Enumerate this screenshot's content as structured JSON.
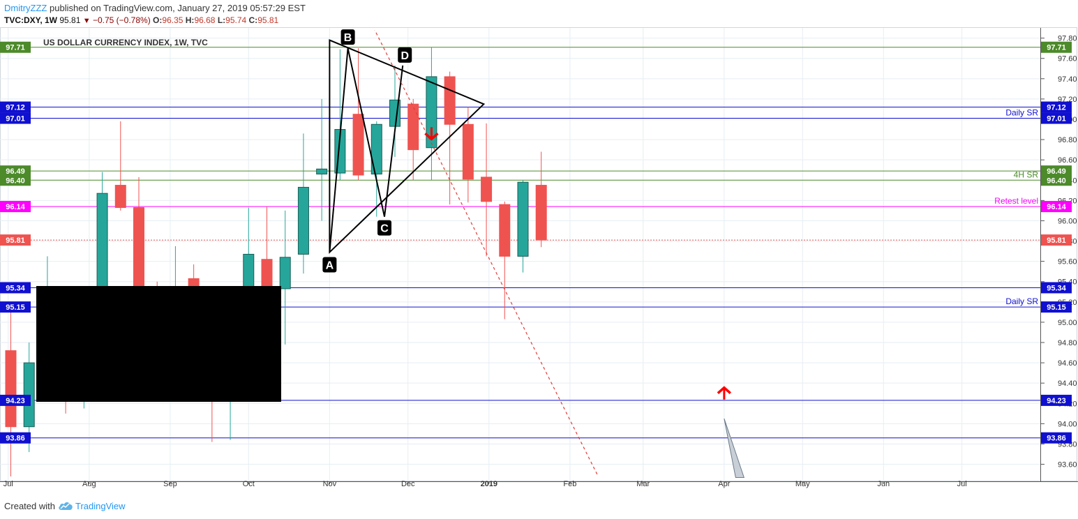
{
  "header": {
    "author": "DmitryZZZ",
    "published": "published on TradingView.com, January 27, 2019 05:57:29 EST",
    "symbol": "TVC:DXY, 1W",
    "last": "95.81",
    "change": "−0.75 (−0.78%)",
    "o_label": "O:",
    "o_value": "96.35",
    "h_label": "H:",
    "h_value": "96.68",
    "l_label": "L:",
    "l_value": "95.74",
    "c_label": "C:",
    "c_value": "95.81"
  },
  "footer": {
    "created_with": "Created with",
    "brand": "TradingView"
  },
  "colors": {
    "up": "#26a69a",
    "down": "#ef5350",
    "green_level": "#4c8a2a",
    "blue_level": "#1010d0",
    "magenta_level": "#ff00ff",
    "last_price": "#ef5350",
    "grid": "#e6eef3",
    "pattern": "#000000",
    "trendline": "#e53935",
    "arrow": "#ff0000"
  },
  "chart_data": {
    "type": "candlestick",
    "title": "US DOLLAR CURRENCY INDEX, 1W, TVC",
    "ylim": [
      93.48,
      97.88
    ],
    "y_ticks": [
      93.6,
      93.8,
      94.0,
      94.2,
      94.4,
      94.6,
      94.8,
      95.0,
      95.2,
      95.4,
      95.6,
      95.8,
      96.0,
      96.2,
      96.4,
      96.6,
      96.8,
      97.0,
      97.2,
      97.4,
      97.6,
      97.8
    ],
    "y_tick_labels": [
      "93.60",
      "93.80",
      "94.00",
      "94.20",
      "94.40",
      "94.60",
      "94.80",
      "95.00",
      "95.20",
      "95.40",
      "95.60",
      "95.80",
      "96.00",
      "96.20",
      "96.40",
      "96.60",
      "96.80",
      "97.00",
      "97.20",
      "97.40",
      "97.60",
      "97.80"
    ],
    "x_range": [
      "2018-06-30",
      "2019-07-31"
    ],
    "x_ticks": [
      {
        "label": "Jul",
        "date": "2018-07-01"
      },
      {
        "label": "Aug",
        "date": "2018-08-01"
      },
      {
        "label": "Sep",
        "date": "2018-09-01"
      },
      {
        "label": "Oct",
        "date": "2018-10-01"
      },
      {
        "label": "Nov",
        "date": "2018-11-01"
      },
      {
        "label": "Dec",
        "date": "2018-12-01"
      },
      {
        "label": "2019",
        "date": "2019-01-01",
        "bold": true
      },
      {
        "label": "Feb",
        "date": "2019-02-01"
      },
      {
        "label": "Mar",
        "date": "2019-03-01"
      },
      {
        "label": "Apr",
        "date": "2019-04-01"
      },
      {
        "label": "May",
        "date": "2019-05-01"
      },
      {
        "label": "Jun",
        "date": "2019-06-01"
      },
      {
        "label": "Jul",
        "date": "2019-07-01"
      }
    ],
    "candles": [
      {
        "date": "2018-07-02",
        "o": 94.72,
        "h": 95.1,
        "l": 93.45,
        "c": 93.97
      },
      {
        "date": "2018-07-09",
        "o": 93.97,
        "h": 94.8,
        "l": 93.72,
        "c": 94.6
      },
      {
        "date": "2018-07-16",
        "o": 94.6,
        "h": 95.65,
        "l": 94.45,
        "c": 95.2
      },
      {
        "date": "2018-07-23",
        "o": 95.1,
        "h": 95.2,
        "l": 94.1,
        "c": 94.9
      },
      {
        "date": "2018-07-30",
        "o": 94.9,
        "h": 95.2,
        "l": 94.15,
        "c": 95.1
      },
      {
        "date": "2018-08-06",
        "o": 95.15,
        "h": 96.48,
        "l": 95.05,
        "c": 96.27
      },
      {
        "date": "2018-08-13",
        "o": 96.35,
        "h": 96.98,
        "l": 96.1,
        "c": 96.13
      },
      {
        "date": "2018-08-20",
        "o": 96.13,
        "h": 96.43,
        "l": 95.0,
        "c": 95.25
      },
      {
        "date": "2018-08-27",
        "o": 95.2,
        "h": 95.4,
        "l": 94.6,
        "c": 94.9
      },
      {
        "date": "2018-09-03",
        "o": 94.9,
        "h": 95.75,
        "l": 94.7,
        "c": 95.35
      },
      {
        "date": "2018-09-10",
        "o": 95.43,
        "h": 95.57,
        "l": 94.9,
        "c": 95.1
      },
      {
        "date": "2018-09-17",
        "o": 95.0,
        "h": 95.2,
        "l": 93.82,
        "c": 94.25
      },
      {
        "date": "2018-09-24",
        "o": 94.25,
        "h": 95.0,
        "l": 93.84,
        "c": 94.9
      },
      {
        "date": "2018-10-01",
        "o": 95.12,
        "h": 96.13,
        "l": 95.0,
        "c": 95.67
      },
      {
        "date": "2018-10-08",
        "o": 95.62,
        "h": 96.14,
        "l": 94.95,
        "c": 95.23
      },
      {
        "date": "2018-10-15",
        "o": 95.33,
        "h": 96.1,
        "l": 94.78,
        "c": 95.64
      },
      {
        "date": "2018-10-22",
        "o": 95.67,
        "h": 96.86,
        "l": 95.48,
        "c": 96.33
      },
      {
        "date": "2018-10-29",
        "o": 96.46,
        "h": 97.2,
        "l": 96.0,
        "c": 96.51
      },
      {
        "date": "2018-11-05",
        "o": 96.47,
        "h": 97.69,
        "l": 96.4,
        "c": 96.9
      },
      {
        "date": "2018-11-12",
        "o": 97.05,
        "h": 97.7,
        "l": 96.4,
        "c": 96.45
      },
      {
        "date": "2018-11-19",
        "o": 96.46,
        "h": 96.98,
        "l": 96.04,
        "c": 96.95
      },
      {
        "date": "2018-11-26",
        "o": 96.93,
        "h": 97.53,
        "l": 96.63,
        "c": 97.19
      },
      {
        "date": "2018-12-03",
        "o": 97.15,
        "h": 97.2,
        "l": 96.4,
        "c": 96.7
      },
      {
        "date": "2018-12-10",
        "o": 96.72,
        "h": 97.71,
        "l": 96.4,
        "c": 97.42
      },
      {
        "date": "2018-12-17",
        "o": 97.42,
        "h": 97.47,
        "l": 96.16,
        "c": 96.95
      },
      {
        "date": "2018-12-24",
        "o": 96.95,
        "h": 97.12,
        "l": 96.18,
        "c": 96.41
      },
      {
        "date": "2018-12-31",
        "o": 96.43,
        "h": 96.96,
        "l": 95.65,
        "c": 96.19
      },
      {
        "date": "2019-01-07",
        "o": 96.16,
        "h": 96.19,
        "l": 95.03,
        "c": 95.65
      },
      {
        "date": "2019-01-14",
        "o": 95.65,
        "h": 96.4,
        "l": 95.49,
        "c": 96.38
      },
      {
        "date": "2019-01-21",
        "o": 96.35,
        "h": 96.68,
        "l": 95.74,
        "c": 95.81
      }
    ],
    "levels": [
      {
        "value": 97.71,
        "label": "97.71",
        "color": "#4c8a2a"
      },
      {
        "value": 97.12,
        "label": "97.12",
        "color": "#1010d0"
      },
      {
        "value": 97.01,
        "label": "97.01",
        "color": "#1010d0",
        "text": "Daily SR"
      },
      {
        "value": 96.49,
        "label": "96.49",
        "color": "#4c8a2a"
      },
      {
        "value": 96.4,
        "label": "96.40",
        "color": "#4c8a2a",
        "text": "4H SR"
      },
      {
        "value": 96.14,
        "label": "96.14",
        "color": "#ff00ff",
        "text": "Retest level"
      },
      {
        "value": 95.34,
        "label": "95.34",
        "color": "#1010d0"
      },
      {
        "value": 95.15,
        "label": "95.15",
        "color": "#1010d0",
        "text": "Daily SR"
      },
      {
        "value": 94.23,
        "label": "94.23",
        "color": "#1010d0"
      },
      {
        "value": 93.86,
        "label": "93.86",
        "color": "#1010d0"
      }
    ],
    "last_price": {
      "value": 95.81,
      "label": "95.81"
    },
    "pattern_points": [
      {
        "label": "A",
        "date": "2018-11-01",
        "value": 95.69
      },
      {
        "label": "B",
        "date": "2018-11-08",
        "value": 97.7
      },
      {
        "label": "C",
        "date": "2018-11-22",
        "value": 96.04
      },
      {
        "label": "D",
        "date": "2018-11-29",
        "value": 97.53
      }
    ],
    "triangle": [
      {
        "date": "2018-11-01",
        "value": 95.69
      },
      {
        "date": "2018-11-01",
        "value": 97.78
      },
      {
        "date": "2018-12-30",
        "value": 97.15
      }
    ],
    "trendline": [
      {
        "date": "2018-11-14",
        "value": 98.1
      },
      {
        "date": "2019-02-12",
        "value": 93.47
      }
    ],
    "arrows": [
      {
        "direction": "down",
        "date": "2018-12-10",
        "value": 96.86
      },
      {
        "direction": "up",
        "date": "2019-04-01",
        "value": 94.3
      }
    ],
    "pointer": [
      {
        "date": "2019-04-01",
        "value": 94.05
      },
      {
        "date": "2019-04-07",
        "value": 93.47
      }
    ]
  }
}
